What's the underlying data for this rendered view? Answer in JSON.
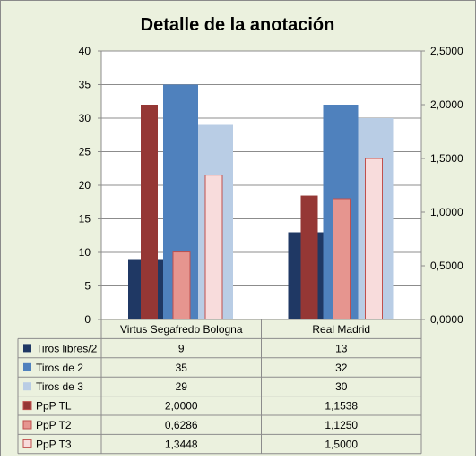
{
  "chart_data": {
    "type": "bar",
    "title": "Detalle de la anotación",
    "categories": [
      "Virtus Segafredo Bologna",
      "Real Madrid"
    ],
    "y_left": {
      "min": 0,
      "max": 40,
      "ticks": [
        "0",
        "5",
        "10",
        "15",
        "20",
        "25",
        "30",
        "35",
        "40"
      ]
    },
    "y_right": {
      "min": 0,
      "max": 2.5,
      "ticks": [
        "0,0000",
        "0,5000",
        "1,0000",
        "1,5000",
        "2,0000",
        "2,5000"
      ]
    },
    "grid": true,
    "legend": "data-table-below",
    "series": [
      {
        "name": "Tiros libres/2",
        "axis": "left",
        "color": "#1f3864",
        "values": [
          9,
          13
        ],
        "labels": [
          "9",
          "13"
        ]
      },
      {
        "name": "Tiros de 2",
        "axis": "left",
        "color": "#4f81bd",
        "values": [
          35,
          32
        ],
        "labels": [
          "35",
          "32"
        ]
      },
      {
        "name": "Tiros de 3",
        "axis": "left",
        "color": "#b9cde5",
        "values": [
          29,
          30
        ],
        "labels": [
          "29",
          "30"
        ]
      },
      {
        "name": "PpP TL",
        "axis": "right",
        "color": "#953735",
        "values": [
          2.0,
          1.1538
        ],
        "labels": [
          "2,0000",
          "1,1538"
        ]
      },
      {
        "name": "PpP T2",
        "axis": "right",
        "color": "#e6958f",
        "values": [
          0.6286,
          1.125
        ],
        "labels": [
          "0,6286",
          "1,1250"
        ]
      },
      {
        "name": "PpP T3",
        "axis": "right",
        "color": "#f8dcdc",
        "values": [
          1.3448,
          1.5
        ],
        "labels": [
          "1,3448",
          "1,5000"
        ]
      }
    ]
  }
}
